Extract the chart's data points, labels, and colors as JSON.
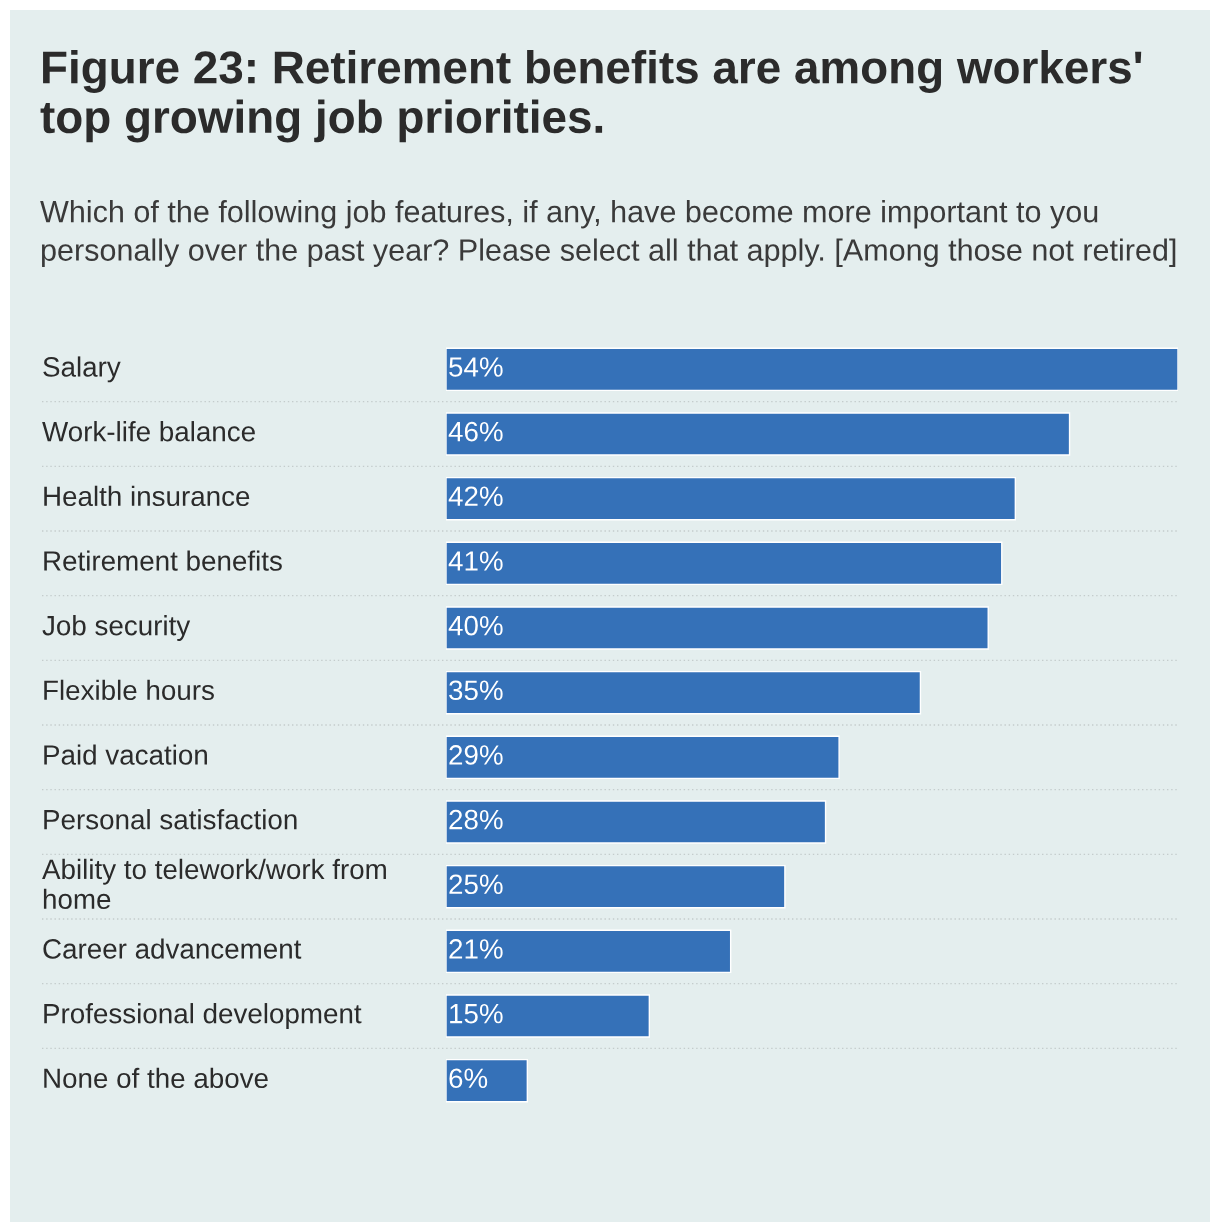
{
  "chart_data": {
    "type": "bar",
    "orientation": "horizontal",
    "title": "Figure 23: Retirement benefits are among workers' top growing job priorities.",
    "subtitle": "Which of the following job features, if any, have become more important to you personally over the past year? Please select all that apply. [Among those not retired]",
    "categories": [
      "Salary",
      "Work-life balance",
      "Health insurance",
      "Retirement benefits",
      "Job security",
      "Flexible hours",
      "Paid vacation",
      "Personal satisfaction",
      "Ability to telework/work from home",
      "Career advancement",
      "Professional development",
      "None of the above"
    ],
    "values": [
      54,
      46,
      42,
      41,
      40,
      35,
      29,
      28,
      25,
      21,
      15,
      6
    ],
    "value_labels": [
      "54%",
      "46%",
      "42%",
      "41%",
      "40%",
      "35%",
      "29%",
      "28%",
      "25%",
      "21%",
      "15%",
      "6%"
    ],
    "color": "#3571b8",
    "grid": "y",
    "legend": false
  }
}
